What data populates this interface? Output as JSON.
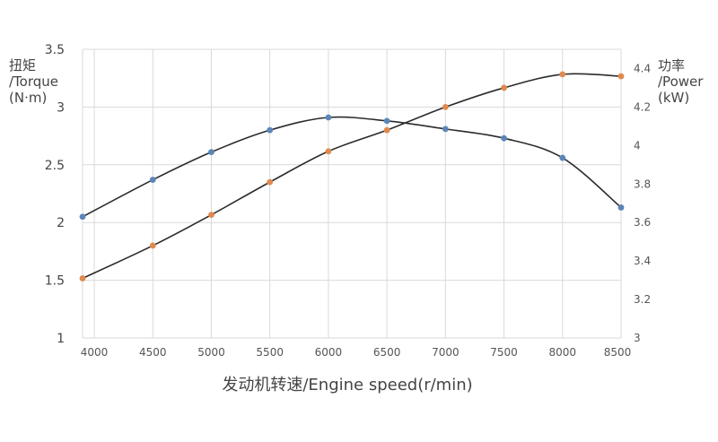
{
  "chart_data": {
    "type": "line",
    "xlabel": "发动机转速/Engine speed(r/min)",
    "x": [
      3900,
      4500,
      5000,
      5500,
      6000,
      6500,
      7000,
      7500,
      8000,
      8500
    ],
    "x_ticks": [
      "4000",
      "4500",
      "5000",
      "5500",
      "6000",
      "6500",
      "7000",
      "7500",
      "8000",
      "8500"
    ],
    "xlim": [
      3900,
      8500
    ],
    "left_axis": {
      "label_lines": [
        "扭矩",
        "/Torque",
        "(N·m)"
      ],
      "ylim": [
        1,
        3.5
      ],
      "ticks": [
        "1",
        "1.5",
        "2",
        "2.5",
        "3",
        "3.5"
      ]
    },
    "right_axis": {
      "label_lines": [
        "功率",
        "/Power",
        "(kW)"
      ],
      "ylim": [
        3,
        4.5
      ],
      "ticks": [
        "3",
        "3.2",
        "3.4",
        "3.6",
        "3.8",
        "4",
        "4.2",
        "4.4"
      ]
    },
    "grid": "vertical and horizontal",
    "series": [
      {
        "axis": "left",
        "color": "#5b86b8",
        "values": [
          2.05,
          2.37,
          2.61,
          2.8,
          2.91,
          2.88,
          2.81,
          2.73,
          2.56,
          2.13
        ]
      },
      {
        "axis": "right",
        "color": "#e08a4f",
        "values": [
          3.31,
          3.48,
          3.64,
          3.81,
          3.97,
          4.08,
          4.2,
          4.3,
          4.37,
          4.36
        ]
      }
    ]
  }
}
